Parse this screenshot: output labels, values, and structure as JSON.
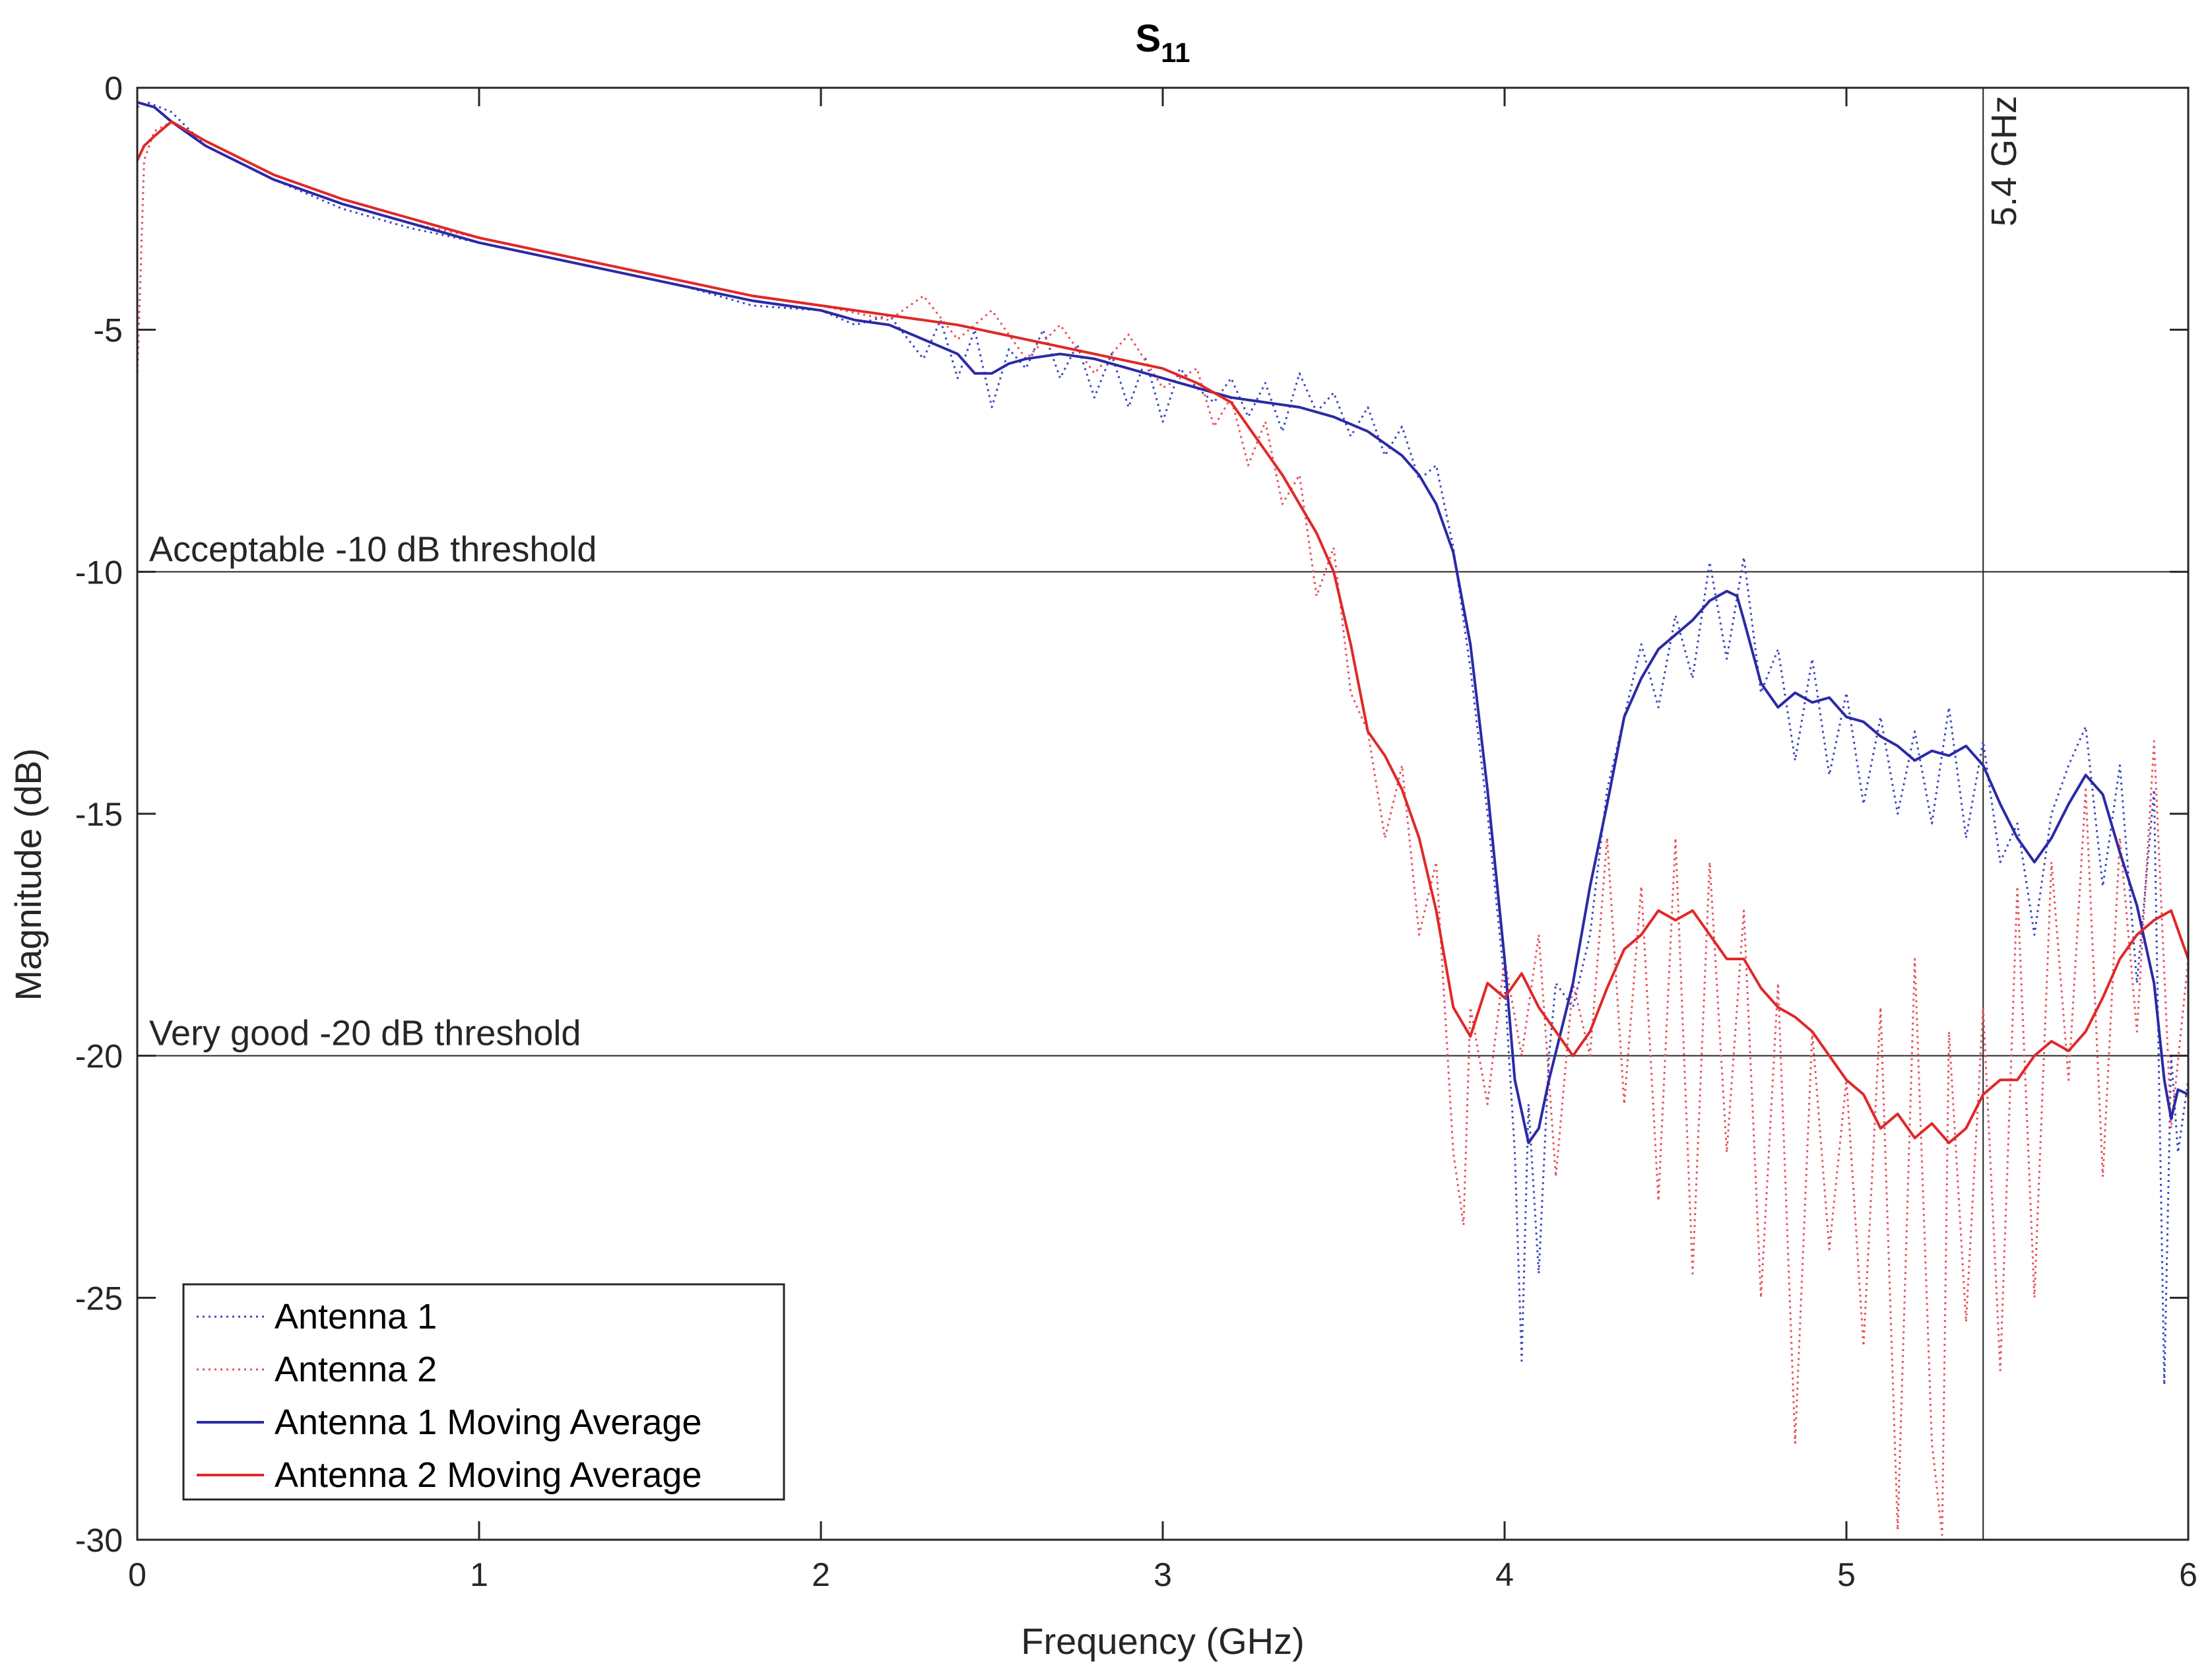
{
  "chart_data": {
    "type": "line",
    "title": "S",
    "title_subscript": "11",
    "xlabel": "Frequency (GHz)",
    "ylabel": "Magnitude (dB)",
    "xlim": [
      0,
      6
    ],
    "ylim": [
      -30,
      0
    ],
    "xticks": [
      0,
      1,
      2,
      3,
      4,
      5,
      6
    ],
    "yticks": [
      0,
      -5,
      -10,
      -15,
      -20,
      -25,
      -30
    ],
    "grid": false,
    "legend_position": "bottom-left",
    "reference_lines": [
      {
        "orientation": "horizontal",
        "value": -10,
        "label": "Acceptable -10 dB threshold"
      },
      {
        "orientation": "horizontal",
        "value": -20,
        "label": "Very good -20 dB threshold"
      },
      {
        "orientation": "vertical",
        "value": 5.4,
        "label": "5.4 GHz"
      }
    ],
    "series": [
      {
        "name": "Antenna 1",
        "style": "dotted",
        "color": "#3a48c0",
        "x": [
          0,
          0.03,
          0.1,
          0.2,
          0.4,
          0.6,
          0.8,
          1.0,
          1.2,
          1.4,
          1.6,
          1.8,
          2.0,
          2.1,
          2.2,
          2.3,
          2.35,
          2.4,
          2.45,
          2.5,
          2.55,
          2.6,
          2.65,
          2.7,
          2.75,
          2.8,
          2.85,
          2.9,
          2.95,
          3.0,
          3.05,
          3.1,
          3.15,
          3.2,
          3.25,
          3.3,
          3.35,
          3.4,
          3.45,
          3.5,
          3.55,
          3.6,
          3.65,
          3.7,
          3.75,
          3.8,
          3.85,
          3.9,
          3.95,
          4.0,
          4.03,
          4.05,
          4.07,
          4.1,
          4.13,
          4.15,
          4.2,
          4.25,
          4.3,
          4.35,
          4.4,
          4.45,
          4.5,
          4.55,
          4.6,
          4.65,
          4.7,
          4.75,
          4.8,
          4.85,
          4.9,
          4.95,
          5.0,
          5.05,
          5.1,
          5.15,
          5.2,
          5.25,
          5.3,
          5.35,
          5.4,
          5.45,
          5.5,
          5.55,
          5.6,
          5.65,
          5.7,
          5.75,
          5.8,
          5.85,
          5.9,
          5.93,
          5.95,
          5.97,
          6.0
        ],
        "values": [
          -0.4,
          -0.3,
          -0.5,
          -1.2,
          -1.9,
          -2.5,
          -2.9,
          -3.2,
          -3.5,
          -3.8,
          -4.1,
          -4.5,
          -4.6,
          -4.9,
          -4.7,
          -5.6,
          -4.8,
          -6.0,
          -5.0,
          -6.6,
          -5.4,
          -5.8,
          -5.0,
          -6.0,
          -5.3,
          -6.4,
          -5.5,
          -6.6,
          -5.6,
          -6.9,
          -5.8,
          -6.2,
          -6.5,
          -6.0,
          -6.8,
          -6.1,
          -7.1,
          -5.9,
          -6.7,
          -6.3,
          -7.2,
          -6.6,
          -7.6,
          -7.0,
          -8.1,
          -7.8,
          -9.5,
          -12.0,
          -15.0,
          -18.5,
          -22.0,
          -26.3,
          -21.0,
          -24.5,
          -20.0,
          -18.5,
          -19.0,
          -17.5,
          -14.5,
          -13.0,
          -11.5,
          -12.8,
          -10.9,
          -12.2,
          -9.8,
          -11.8,
          -9.7,
          -12.5,
          -11.6,
          -13.9,
          -11.8,
          -14.2,
          -12.5,
          -14.8,
          -13.0,
          -15.0,
          -13.3,
          -15.2,
          -12.8,
          -15.5,
          -13.5,
          -16.0,
          -15.2,
          -17.5,
          -15.0,
          -14.0,
          -13.2,
          -16.5,
          -14.0,
          -18.5,
          -14.5,
          -26.8,
          -20.0,
          -22.0,
          -20.5
        ]
      },
      {
        "name": "Antenna 2",
        "style": "dotted",
        "color": "#e8505a",
        "x": [
          0,
          0.02,
          0.05,
          0.1,
          0.2,
          0.4,
          0.6,
          0.8,
          1.0,
          1.2,
          1.4,
          1.6,
          1.8,
          2.0,
          2.2,
          2.3,
          2.4,
          2.5,
          2.6,
          2.7,
          2.8,
          2.9,
          3.0,
          3.1,
          3.15,
          3.2,
          3.25,
          3.3,
          3.35,
          3.4,
          3.45,
          3.5,
          3.55,
          3.6,
          3.65,
          3.7,
          3.75,
          3.8,
          3.85,
          3.88,
          3.9,
          3.95,
          4.0,
          4.05,
          4.1,
          4.15,
          4.2,
          4.25,
          4.3,
          4.35,
          4.4,
          4.45,
          4.5,
          4.55,
          4.6,
          4.65,
          4.7,
          4.75,
          4.8,
          4.85,
          4.9,
          4.95,
          5.0,
          5.05,
          5.1,
          5.15,
          5.2,
          5.25,
          5.28,
          5.3,
          5.35,
          5.4,
          5.45,
          5.5,
          5.55,
          5.6,
          5.65,
          5.7,
          5.75,
          5.8,
          5.85,
          5.9,
          5.95,
          6.0
        ],
        "values": [
          -6.0,
          -1.5,
          -0.9,
          -0.7,
          -1.2,
          -1.9,
          -2.4,
          -2.8,
          -3.1,
          -3.4,
          -3.7,
          -4.0,
          -4.3,
          -4.5,
          -4.8,
          -4.3,
          -5.2,
          -4.6,
          -5.6,
          -4.9,
          -5.9,
          -5.1,
          -6.2,
          -5.8,
          -7.0,
          -6.4,
          -7.8,
          -6.9,
          -8.6,
          -8.0,
          -10.5,
          -9.5,
          -12.5,
          -13.3,
          -15.5,
          -14.0,
          -17.5,
          -16.0,
          -22.0,
          -23.5,
          -19.0,
          -21.0,
          -18.0,
          -20.0,
          -17.5,
          -22.5,
          -18.5,
          -20.0,
          -15.5,
          -21.0,
          -16.5,
          -23.0,
          -15.5,
          -24.5,
          -16.0,
          -22.0,
          -17.0,
          -25.0,
          -18.5,
          -28.0,
          -19.5,
          -24.0,
          -20.5,
          -26.0,
          -19.0,
          -29.8,
          -18.0,
          -28.0,
          -29.9,
          -19.5,
          -25.5,
          -19.0,
          -26.5,
          -16.5,
          -25.0,
          -16.0,
          -20.5,
          -14.5,
          -22.5,
          -15.5,
          -19.5,
          -13.5,
          -21.5,
          -18.0
        ]
      },
      {
        "name": "Antenna 1 Moving Average",
        "style": "solid",
        "color": "#2a2aa6",
        "x": [
          0,
          0.05,
          0.1,
          0.2,
          0.4,
          0.6,
          0.8,
          1.0,
          1.2,
          1.4,
          1.6,
          1.8,
          2.0,
          2.1,
          2.2,
          2.3,
          2.4,
          2.45,
          2.5,
          2.55,
          2.6,
          2.7,
          2.8,
          2.9,
          3.0,
          3.1,
          3.2,
          3.3,
          3.4,
          3.5,
          3.6,
          3.7,
          3.75,
          3.8,
          3.85,
          3.9,
          3.95,
          4.0,
          4.03,
          4.07,
          4.1,
          4.13,
          4.2,
          4.25,
          4.3,
          4.35,
          4.4,
          4.45,
          4.5,
          4.55,
          4.6,
          4.65,
          4.68,
          4.7,
          4.75,
          4.8,
          4.85,
          4.9,
          4.95,
          5.0,
          5.05,
          5.1,
          5.15,
          5.2,
          5.25,
          5.3,
          5.35,
          5.4,
          5.45,
          5.5,
          5.55,
          5.6,
          5.65,
          5.7,
          5.75,
          5.8,
          5.85,
          5.9,
          5.93,
          5.95,
          5.97,
          6.0
        ],
        "values": [
          -0.3,
          -0.4,
          -0.7,
          -1.2,
          -1.9,
          -2.4,
          -2.8,
          -3.2,
          -3.5,
          -3.8,
          -4.1,
          -4.4,
          -4.6,
          -4.8,
          -4.9,
          -5.2,
          -5.5,
          -5.9,
          -5.9,
          -5.7,
          -5.6,
          -5.5,
          -5.6,
          -5.8,
          -6.0,
          -6.2,
          -6.4,
          -6.5,
          -6.6,
          -6.8,
          -7.1,
          -7.6,
          -8.0,
          -8.6,
          -9.6,
          -11.5,
          -14.5,
          -18.0,
          -20.5,
          -21.8,
          -21.5,
          -20.5,
          -18.5,
          -16.5,
          -14.8,
          -13.0,
          -12.2,
          -11.6,
          -11.3,
          -11.0,
          -10.6,
          -10.4,
          -10.5,
          -11.0,
          -12.3,
          -12.8,
          -12.5,
          -12.7,
          -12.6,
          -13.0,
          -13.1,
          -13.4,
          -13.6,
          -13.9,
          -13.7,
          -13.8,
          -13.6,
          -14.0,
          -14.8,
          -15.5,
          -16.0,
          -15.5,
          -14.8,
          -14.2,
          -14.6,
          -15.8,
          -16.9,
          -18.5,
          -20.5,
          -21.3,
          -20.7,
          -20.8
        ]
      },
      {
        "name": "Antenna 2 Moving Average",
        "style": "solid",
        "color": "#e02828",
        "x": [
          0,
          0.02,
          0.05,
          0.1,
          0.2,
          0.4,
          0.6,
          0.8,
          1.0,
          1.2,
          1.4,
          1.6,
          1.8,
          2.0,
          2.2,
          2.4,
          2.6,
          2.8,
          3.0,
          3.1,
          3.2,
          3.25,
          3.3,
          3.35,
          3.4,
          3.45,
          3.5,
          3.55,
          3.6,
          3.65,
          3.7,
          3.75,
          3.8,
          3.85,
          3.9,
          3.95,
          4.0,
          4.05,
          4.1,
          4.15,
          4.2,
          4.25,
          4.3,
          4.35,
          4.4,
          4.45,
          4.5,
          4.55,
          4.6,
          4.65,
          4.7,
          4.75,
          4.8,
          4.85,
          4.9,
          4.95,
          5.0,
          5.05,
          5.1,
          5.15,
          5.2,
          5.25,
          5.3,
          5.35,
          5.4,
          5.45,
          5.5,
          5.55,
          5.6,
          5.65,
          5.7,
          5.75,
          5.8,
          5.85,
          5.9,
          5.95,
          6.0
        ],
        "values": [
          -1.5,
          -1.2,
          -1.0,
          -0.7,
          -1.1,
          -1.8,
          -2.3,
          -2.7,
          -3.1,
          -3.4,
          -3.7,
          -4.0,
          -4.3,
          -4.5,
          -4.7,
          -4.9,
          -5.2,
          -5.5,
          -5.8,
          -6.1,
          -6.5,
          -7.0,
          -7.5,
          -8.0,
          -8.6,
          -9.2,
          -10.0,
          -11.5,
          -13.3,
          -13.8,
          -14.5,
          -15.5,
          -17.0,
          -19.0,
          -19.6,
          -18.5,
          -18.8,
          -18.3,
          -19.0,
          -19.5,
          -20.0,
          -19.5,
          -18.6,
          -17.8,
          -17.5,
          -17.0,
          -17.2,
          -17.0,
          -17.5,
          -18.0,
          -18.0,
          -18.6,
          -19.0,
          -19.2,
          -19.5,
          -20.0,
          -20.5,
          -20.8,
          -21.5,
          -21.2,
          -21.7,
          -21.4,
          -21.8,
          -21.5,
          -20.8,
          -20.5,
          -20.5,
          -20.0,
          -19.7,
          -19.9,
          -19.5,
          -18.8,
          -18.0,
          -17.5,
          -17.2,
          -17.0,
          -18.0
        ]
      }
    ]
  }
}
